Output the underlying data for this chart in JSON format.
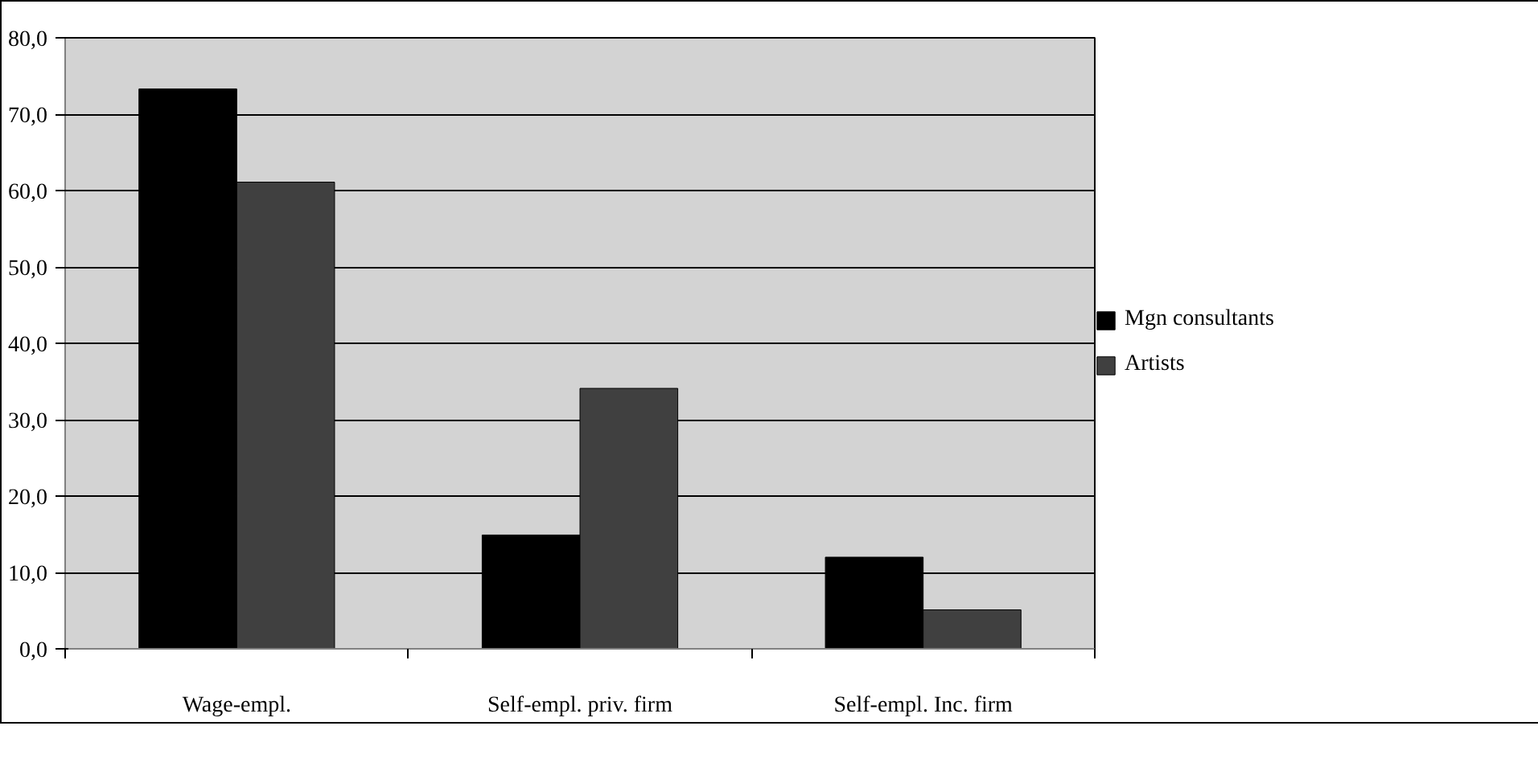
{
  "chart_data": {
    "type": "bar",
    "categories": [
      "Wage-empl.",
      "Self-empl. priv. firm",
      "Self-empl. Inc. firm"
    ],
    "series": [
      {
        "name": "Mgn consultants",
        "color": "#000000",
        "values": [
          73.3,
          14.9,
          12.0
        ]
      },
      {
        "name": "Artists",
        "color": "#404040",
        "values": [
          61.1,
          34.1,
          5.1
        ]
      }
    ],
    "ylim": [
      0,
      80
    ],
    "yticks": [
      {
        "value": 0,
        "label": "0,0"
      },
      {
        "value": 10,
        "label": "10,0"
      },
      {
        "value": 20,
        "label": "20,0"
      },
      {
        "value": 30,
        "label": "30,0"
      },
      {
        "value": 40,
        "label": "40,0"
      },
      {
        "value": 50,
        "label": "50,0"
      },
      {
        "value": 60,
        "label": "60,0"
      },
      {
        "value": 70,
        "label": "70,0"
      },
      {
        "value": 80,
        "label": "80,0"
      }
    ],
    "grid": "y",
    "legend": "right"
  }
}
